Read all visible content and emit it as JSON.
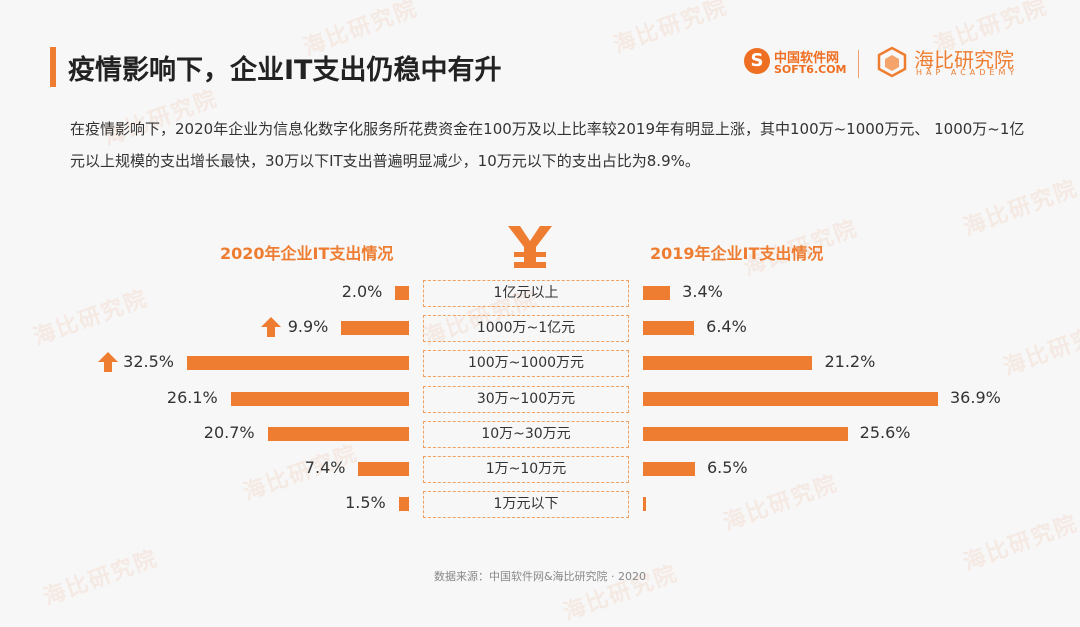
{
  "header": {
    "title": "疫情影响下，企业IT支出仍稳中有升",
    "logo_soft6_cn": "中国软件网",
    "logo_soft6_en": "SOFT6.COM",
    "logo_hap_cn": "海比研究院",
    "logo_hap_en": "HAP ACADEMY"
  },
  "watermark_text": "海比研究院",
  "description": "在疫情影响下，2020年企业为信息化数字化服务所花费资金在100万及以上比率较2019年有明显上涨，其中100万~1000万元、 1000万~1亿元以上规模的支出增长最快，30万以下IT支出普遍明显减少，10万元以下的支出占比为8.9%。",
  "source": "数据来源：中国软件网&海比研究院 · 2020",
  "colors": {
    "accent": "#ee7d31",
    "box_border": "#f0a060"
  },
  "icons": {
    "currency": "yen-icon",
    "increase": "up-arrow-icon"
  },
  "chart_data": {
    "type": "bar",
    "orientation": "horizontal-butterfly",
    "categories": [
      "1亿元以上",
      "1000万~1亿元",
      "100万~1000万元",
      "30万~100万元",
      "10万~30万元",
      "1万~10万元",
      "1万元以下"
    ],
    "series": [
      {
        "name": "2020年企业IT支出情况",
        "values": [
          2.0,
          9.9,
          32.5,
          26.1,
          20.7,
          7.4,
          1.5
        ],
        "labels": [
          "2.0%",
          "9.9%",
          "32.5%",
          "26.1%",
          "20.7%",
          "7.4%",
          "1.5%"
        ],
        "increase_markers": [
          false,
          true,
          true,
          false,
          false,
          false,
          false
        ]
      },
      {
        "name": "2019年企业IT支出情况",
        "values": [
          3.4,
          6.4,
          21.2,
          36.9,
          25.6,
          6.5,
          0.2
        ],
        "labels": [
          "3.4%",
          "6.4%",
          "21.2%",
          "36.9%",
          "25.6%",
          "6.5%",
          ""
        ]
      }
    ]
  }
}
